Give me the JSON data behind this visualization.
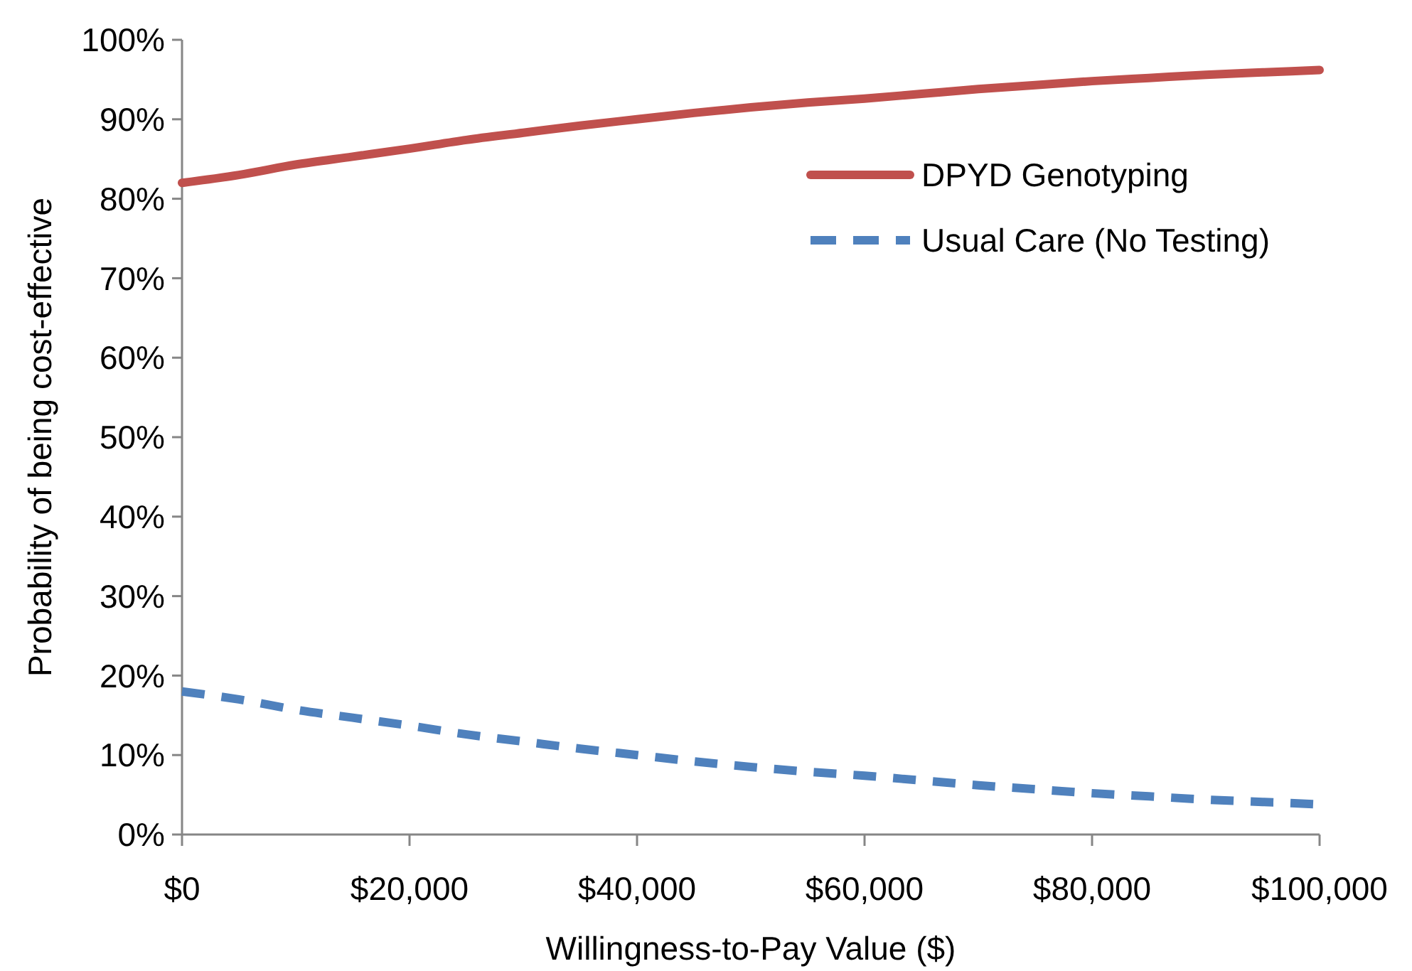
{
  "chart_data": {
    "type": "line",
    "xlabel": "Willingness-to-Pay Value ($)",
    "ylabel": "Probability of being cost-effective",
    "x": [
      0,
      5000,
      10000,
      15000,
      20000,
      25000,
      30000,
      35000,
      40000,
      45000,
      50000,
      55000,
      60000,
      65000,
      70000,
      75000,
      80000,
      85000,
      90000,
      95000,
      100000
    ],
    "series": [
      {
        "name": "DPYD Genotyping",
        "color": "#c0504d",
        "line_style": "solid",
        "values": [
          82,
          83,
          84.3,
          85.3,
          86.3,
          87.4,
          88.3,
          89.2,
          90,
          90.8,
          91.5,
          92.1,
          92.6,
          93.2,
          93.8,
          94.3,
          94.8,
          95.2,
          95.6,
          95.9,
          96.2
        ]
      },
      {
        "name": "Usual Care (No Testing)",
        "color": "#4f81bd",
        "line_style": "dashed",
        "values": [
          18,
          17,
          15.7,
          14.7,
          13.7,
          12.6,
          11.7,
          10.8,
          10,
          9.2,
          8.5,
          7.9,
          7.4,
          6.8,
          6.2,
          5.7,
          5.2,
          4.8,
          4.4,
          4.1,
          3.8
        ]
      }
    ],
    "xlim": [
      0,
      100000
    ],
    "xticks": [
      {
        "value": 0,
        "label": "$0"
      },
      {
        "value": 20000,
        "label": "$20,000"
      },
      {
        "value": 40000,
        "label": "$40,000"
      },
      {
        "value": 60000,
        "label": "$60,000"
      },
      {
        "value": 80000,
        "label": "$80,000"
      },
      {
        "value": 100000,
        "label": "$100,000"
      }
    ],
    "ylim": [
      0,
      100
    ],
    "yticks": [
      {
        "value": 0,
        "label": "0%"
      },
      {
        "value": 10,
        "label": "10%"
      },
      {
        "value": 20,
        "label": "20%"
      },
      {
        "value": 30,
        "label": "30%"
      },
      {
        "value": 40,
        "label": "40%"
      },
      {
        "value": 50,
        "label": "50%"
      },
      {
        "value": 60,
        "label": "60%"
      },
      {
        "value": 70,
        "label": "70%"
      },
      {
        "value": 80,
        "label": "80%"
      },
      {
        "value": 90,
        "label": "90%"
      },
      {
        "value": 100,
        "label": "100%"
      }
    ],
    "grid": false,
    "legend": "top right",
    "marker": "none"
  }
}
